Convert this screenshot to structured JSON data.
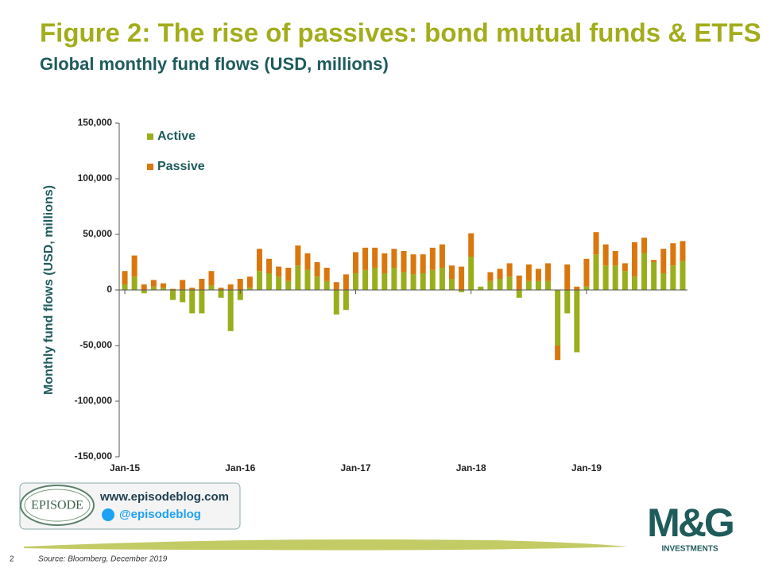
{
  "chart_data": {
    "type": "bar",
    "stacked": true,
    "title": "Figure 2: The rise of passives: bond mutual funds & ETFS",
    "subtitle": "Global monthly fund flows (USD, millions)",
    "y_label": "Monthly fund flows (USD, millions)",
    "categories": [
      "Jan-15",
      null,
      null,
      null,
      null,
      null,
      null,
      null,
      null,
      null,
      null,
      null,
      "Jan-16",
      null,
      null,
      null,
      null,
      null,
      null,
      null,
      null,
      null,
      null,
      null,
      "Jan-17",
      null,
      null,
      null,
      null,
      null,
      null,
      null,
      null,
      null,
      null,
      null,
      "Jan-18",
      null,
      null,
      null,
      null,
      null,
      null,
      null,
      null,
      null,
      null,
      null,
      "Jan-19",
      null,
      null,
      null,
      null,
      null,
      null,
      null,
      null,
      null,
      null
    ],
    "series": [
      {
        "name": "Active",
        "color": "#9aae1c",
        "values": [
          5000,
          12000,
          -3000,
          3000,
          2000,
          -9000,
          -11000,
          -21000,
          -21000,
          4000,
          -7000,
          -37000,
          -9000,
          2000,
          17000,
          15000,
          12000,
          8000,
          22000,
          18000,
          12000,
          8000,
          -22000,
          -18000,
          15000,
          18000,
          20000,
          15000,
          20000,
          16000,
          14000,
          15000,
          18000,
          20000,
          10000,
          -2000,
          30000,
          3000,
          8000,
          10000,
          12000,
          -7000,
          8000,
          8000,
          8000,
          -50000,
          -21000,
          -56000,
          3000,
          32000,
          22000,
          22000,
          17000,
          12000,
          33000,
          25000,
          15000,
          22000,
          26000
        ]
      },
      {
        "name": "Passive",
        "color": "#d9770e",
        "values": [
          12000,
          19000,
          5000,
          6000,
          4000,
          1000,
          9000,
          2000,
          10000,
          13000,
          2000,
          5000,
          10000,
          10000,
          20000,
          13000,
          9000,
          12000,
          18000,
          15000,
          13000,
          12000,
          7000,
          14000,
          19000,
          20000,
          18000,
          18000,
          17000,
          19000,
          18000,
          17000,
          20000,
          21000,
          12000,
          21000,
          21000,
          0,
          8000,
          9000,
          12000,
          13000,
          15000,
          11000,
          16000,
          -13000,
          23000,
          3000,
          25000,
          20000,
          19000,
          13000,
          7000,
          31000,
          14000,
          2000,
          22000,
          20000,
          18000
        ]
      }
    ],
    "ylim": [
      -150000,
      150000
    ],
    "yticks": [
      {
        "value": -150000,
        "label": "-150,000"
      },
      {
        "value": -100000,
        "label": "-100,000"
      },
      {
        "value": -50000,
        "label": "-50,000"
      },
      0,
      {
        "value": 50000,
        "label": "50,000"
      },
      {
        "value": 100000,
        "label": "100,000"
      },
      {
        "value": 150000,
        "label": "150,000"
      }
    ],
    "grid": false,
    "legend": "upper left"
  },
  "footer": {
    "page": "2",
    "source": "Source: Bloomberg, December 2019",
    "logo": "EPISODE",
    "website": "www.episodeblog.com",
    "twitter": "@episodeblog",
    "brand": "M&G",
    "brand_sub": "INVESTMENTS"
  }
}
